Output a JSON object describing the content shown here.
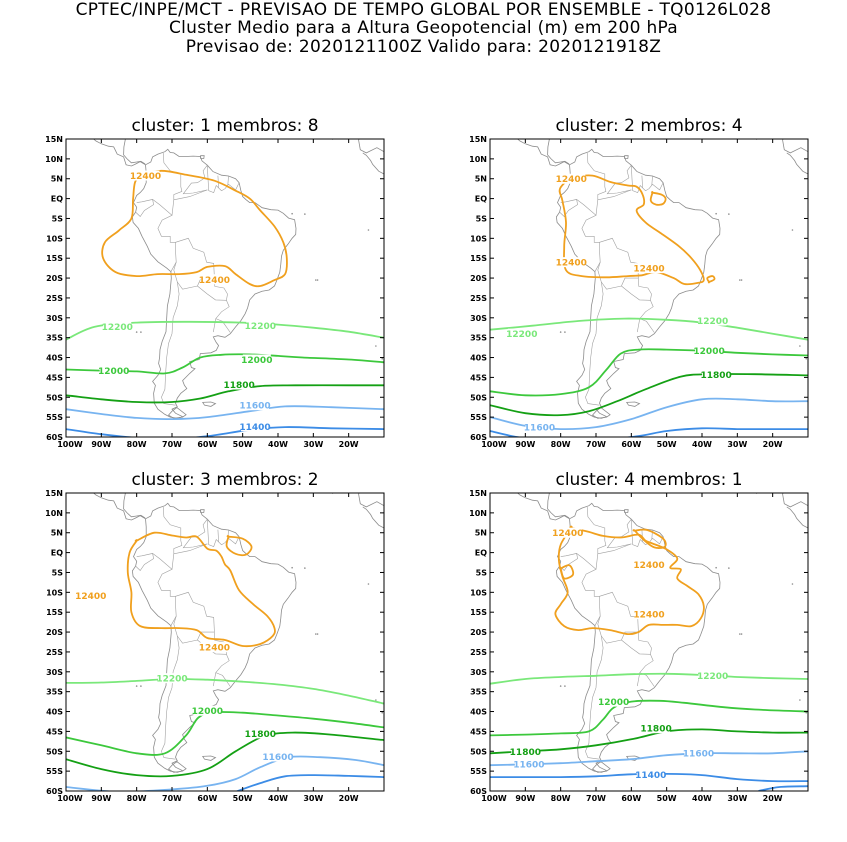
{
  "header": {
    "line1": "CPTEC/INPE/MCT - PREVISAO DE TEMPO GLOBAL POR ENSEMBLE - TQ0126L028",
    "line2": "Cluster Medio para a Altura Geopotencial (m) em 200 hPa",
    "line3": "Previsao de: 2020121100Z   Valido para: 2020121918Z"
  },
  "axes": {
    "lat_labels": [
      "15N",
      "10N",
      "5N",
      "EQ",
      "5S",
      "10S",
      "15S",
      "20S",
      "25S",
      "30S",
      "35S",
      "40S",
      "45S",
      "50S",
      "55S",
      "60S"
    ],
    "lon_labels": [
      "100W",
      "90W",
      "80W",
      "70W",
      "60W",
      "50W",
      "40W",
      "30W",
      "20W"
    ]
  },
  "contour_colors": {
    "12400": "#f0a01e",
    "12200": "#7ae87a",
    "12000": "#3cc83c",
    "11800": "#14a014",
    "11600": "#78b4f0",
    "11400": "#3c8ce6"
  },
  "panels": [
    {
      "title": "cluster: 1   membros: 8",
      "labels": [
        {
          "value": "12400",
          "level": "12400"
        },
        {
          "value": "12400",
          "level": "12400"
        },
        {
          "value": "12200",
          "level": "12200"
        },
        {
          "value": "12200",
          "level": "12200"
        },
        {
          "value": "12000",
          "level": "12000"
        },
        {
          "value": "12000",
          "level": "12000"
        },
        {
          "value": "11800",
          "level": "11800"
        },
        {
          "value": "11600",
          "level": "11600"
        },
        {
          "value": "11400",
          "level": "11400"
        }
      ]
    },
    {
      "title": "cluster: 2   membros: 4",
      "labels": [
        {
          "value": "12400",
          "level": "12400"
        },
        {
          "value": "12400",
          "level": "12400"
        },
        {
          "value": "12400",
          "level": "12400"
        },
        {
          "value": "12200",
          "level": "12200"
        },
        {
          "value": "12200",
          "level": "12200"
        },
        {
          "value": "12000",
          "level": "12000"
        },
        {
          "value": "11800",
          "level": "11800"
        },
        {
          "value": "11600",
          "level": "11600"
        }
      ]
    },
    {
      "title": "cluster: 3   membros: 2",
      "labels": [
        {
          "value": "12400",
          "level": "12400"
        },
        {
          "value": "12400",
          "level": "12400"
        },
        {
          "value": "12200",
          "level": "12200"
        },
        {
          "value": "12000",
          "level": "12000"
        },
        {
          "value": "11800",
          "level": "11800"
        },
        {
          "value": "11600",
          "level": "11600"
        }
      ]
    },
    {
      "title": "cluster: 4   membros: 1",
      "labels": [
        {
          "value": "12400",
          "level": "12400"
        },
        {
          "value": "12400",
          "level": "12400"
        },
        {
          "value": "12400",
          "level": "12400"
        },
        {
          "value": "12200",
          "level": "12200"
        },
        {
          "value": "12000",
          "level": "12000"
        },
        {
          "value": "11800",
          "level": "11800"
        },
        {
          "value": "11800",
          "level": "11800"
        },
        {
          "value": "11600",
          "level": "11600"
        },
        {
          "value": "11600",
          "level": "11600"
        },
        {
          "value": "11400",
          "level": "11400"
        }
      ]
    }
  ]
}
